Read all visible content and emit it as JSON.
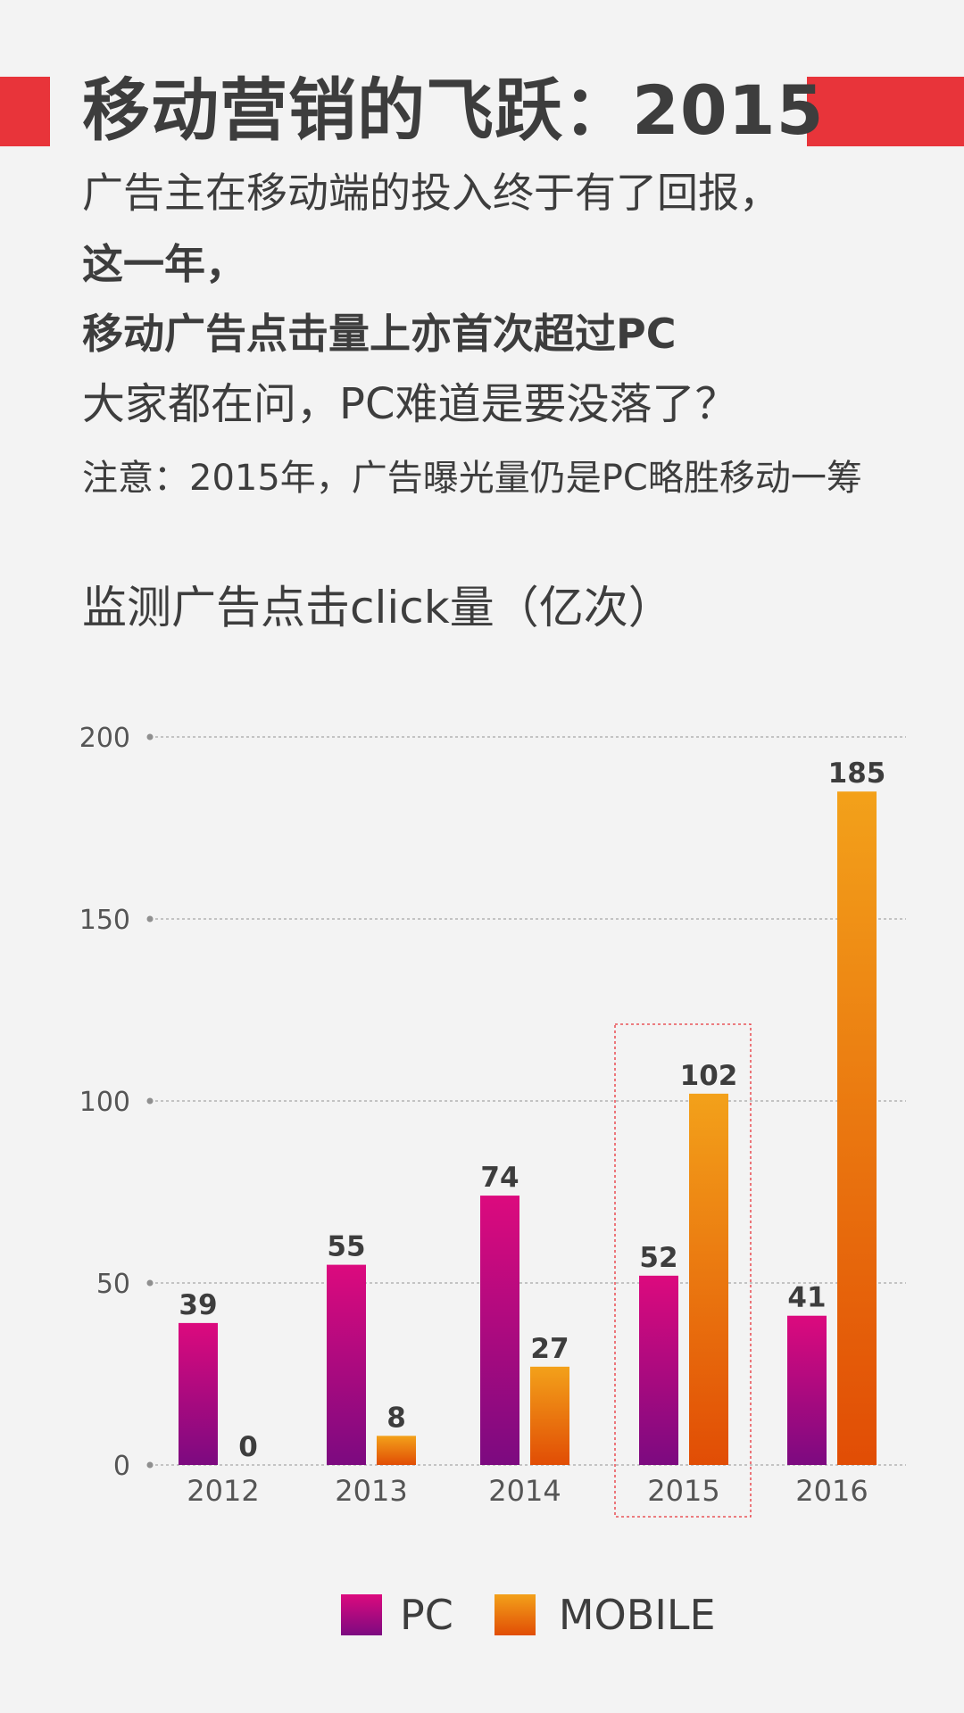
{
  "page": {
    "title": "移动营销的飞跃：2015",
    "intro_line1": "广告主在移动端的投入终于有了回报，",
    "intro_line2": "这一年，",
    "intro_line3": "移动广告点击量上亦首次超过PC",
    "intro_line4": "大家都在问，PC难道是要没落了？",
    "note": "注意：2015年，广告曝光量仍是PC略胜移动一筹",
    "accent_color": "#e8343a"
  },
  "chart_data": {
    "type": "bar",
    "title": "监测广告点击click量（亿次）",
    "xlabel": "",
    "ylabel": "",
    "categories": [
      "2012",
      "2013",
      "2014",
      "2015",
      "2016"
    ],
    "series": [
      {
        "name": "PC",
        "values": [
          39,
          55,
          74,
          52,
          41
        ],
        "color_top": "#dc0a7e",
        "color_bottom": "#7c0a80"
      },
      {
        "name": "MOBILE",
        "values": [
          0,
          8,
          27,
          102,
          185
        ],
        "color_top": "#f3a11a",
        "color_bottom": "#e14d05"
      }
    ],
    "ylim": [
      0,
      200
    ],
    "yticks": [
      0,
      50,
      100,
      150,
      200
    ],
    "grid": true,
    "grid_style": "dashed",
    "highlight_category": "2015",
    "legend_position": "bottom-center"
  }
}
